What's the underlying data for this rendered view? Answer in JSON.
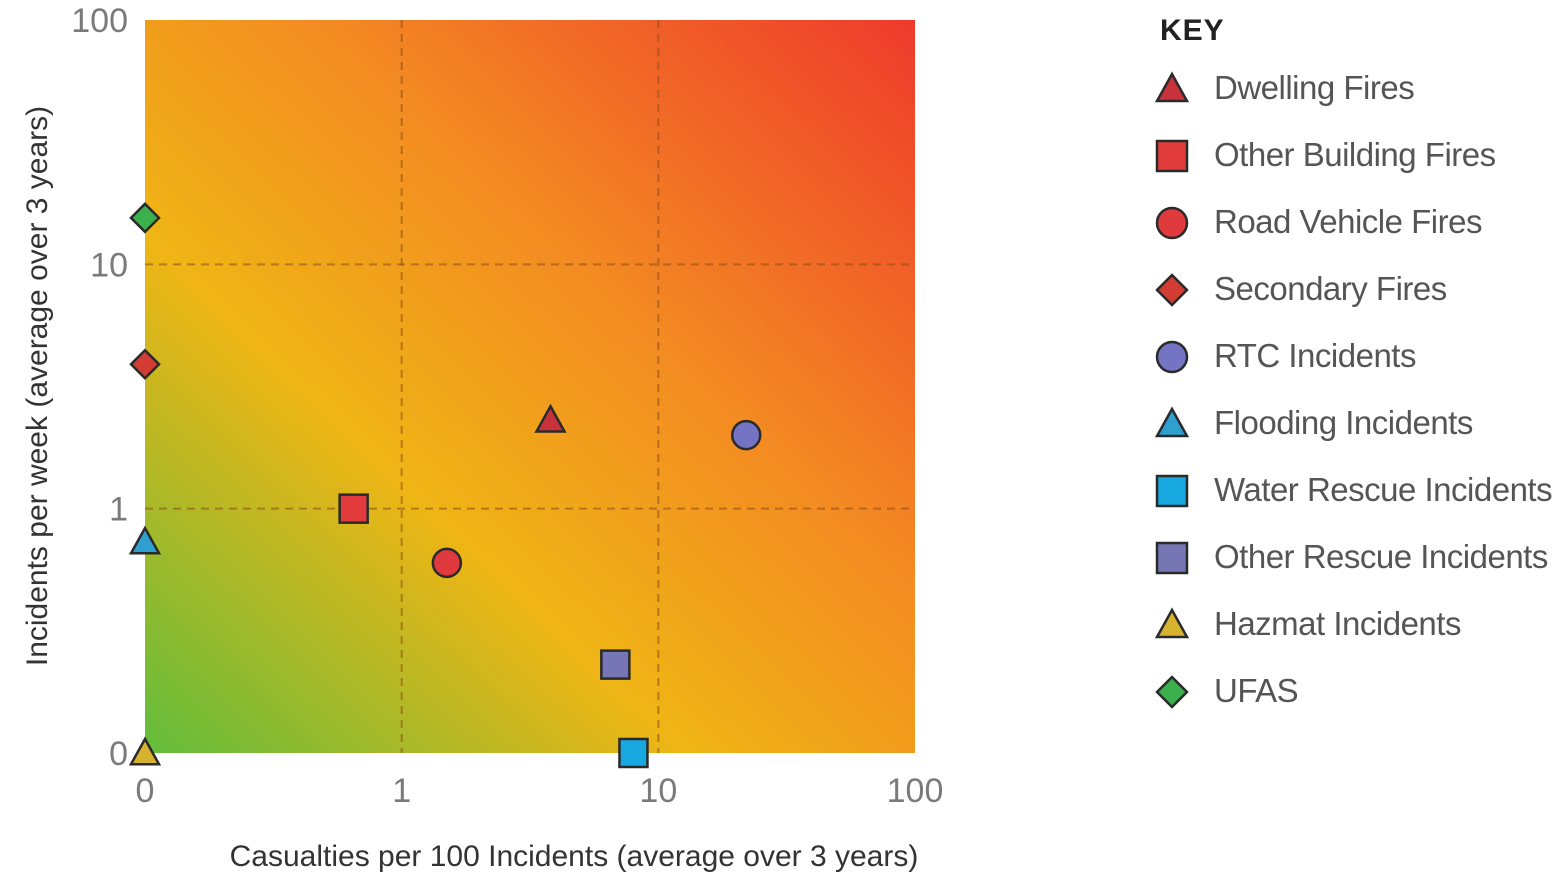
{
  "chart_data": {
    "type": "scatter",
    "xlabel": "Casualties per 100 Incidents (average over 3 years)",
    "ylabel": "Incidents per week (average over 3 years)",
    "xscale": "log",
    "yscale": "log",
    "xlim": [
      0.1,
      100
    ],
    "ylim": [
      0.1,
      100
    ],
    "x_ticks": [
      {
        "value": 0.1,
        "label": "0"
      },
      {
        "value": 1,
        "label": "1"
      },
      {
        "value": 10,
        "label": "10"
      },
      {
        "value": 100,
        "label": "100"
      }
    ],
    "y_ticks": [
      {
        "value": 0.1,
        "label": "0"
      },
      {
        "value": 1,
        "label": "1"
      },
      {
        "value": 10,
        "label": "10"
      },
      {
        "value": 100,
        "label": "100"
      }
    ],
    "grid": true,
    "background": "gradient green (bottom-left) to red (top-right)",
    "legend_title": "KEY",
    "legend_position": "right",
    "series": [
      {
        "name": "Dwelling Fires",
        "marker": "triangle",
        "color": "#c8323a",
        "x": 3.8,
        "y": 2.3
      },
      {
        "name": "Other Building Fires",
        "marker": "square",
        "color": "#e33c3c",
        "x": 0.65,
        "y": 1.0
      },
      {
        "name": "Road Vehicle Fires",
        "marker": "circle",
        "color": "#e03a3e",
        "x": 1.5,
        "y": 0.6
      },
      {
        "name": "Secondary Fires",
        "marker": "diamond",
        "color": "#d23c32",
        "x": 0.1,
        "y": 3.9
      },
      {
        "name": "RTC Incidents",
        "marker": "circle",
        "color": "#7474c4",
        "x": 22,
        "y": 2.0
      },
      {
        "name": "Flooding Incidents",
        "marker": "triangle",
        "color": "#2f9fd0",
        "x": 0.1,
        "y": 0.73
      },
      {
        "name": "Water Rescue Incidents",
        "marker": "square",
        "color": "#17a8e0",
        "x": 8,
        "y": 0.1
      },
      {
        "name": "Other Rescue Incidents",
        "marker": "square",
        "color": "#7676b4",
        "x": 6.8,
        "y": 0.23
      },
      {
        "name": "Hazmat Incidents",
        "marker": "triangle",
        "color": "#d6b22e",
        "x": 0.1,
        "y": 0.1
      },
      {
        "name": "UFAS",
        "marker": "diamond",
        "color": "#3cb04c",
        "x": 0.1,
        "y": 15.5
      }
    ]
  }
}
